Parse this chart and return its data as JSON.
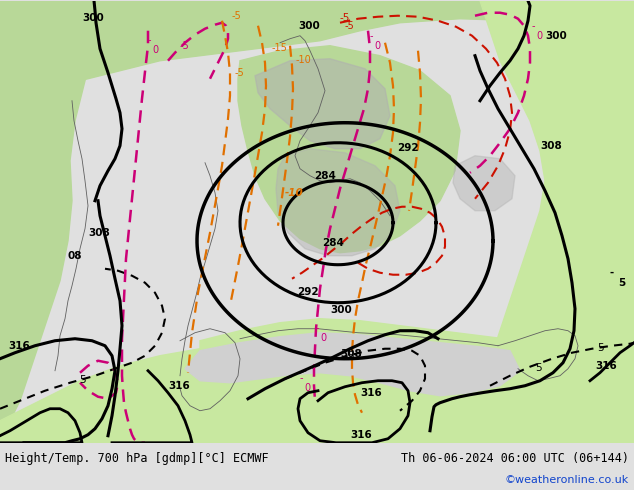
{
  "title_left": "Height/Temp. 700 hPa [gdmp][°C] ECMWF",
  "title_right": "Th 06-06-2024 06:00 UTC (06+144)",
  "credit": "©weatheronline.co.uk",
  "bg_color": "#e0e0e0",
  "land_green": "#b8d898",
  "land_green_bright": "#c8e8a0",
  "sea_gray": "#d0d0d0",
  "topo_gray": "#b0b0b0",
  "bottom_bar": "#f5f5f5",
  "black_contour_lw": 2.2,
  "pink_color": "#cc0077",
  "orange_color": "#e07000",
  "red_color": "#cc1100",
  "credit_color": "#1144cc",
  "title_fontsize": 8.5,
  "credit_fontsize": 8.0,
  "contour_label_fs": 7.5
}
